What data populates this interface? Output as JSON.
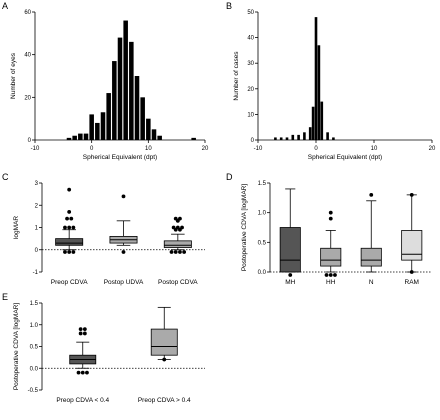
{
  "chart_data": [
    {
      "panel": "A",
      "type": "bar",
      "xlabel": "Spherical Equivalent (dpt)",
      "ylabel": "Number of eyes",
      "xlim": [
        -10,
        20
      ],
      "ylim": [
        0,
        60
      ],
      "xticks": [
        -10,
        0,
        10,
        20
      ],
      "yticks": [
        0,
        20,
        40,
        60
      ],
      "x": [
        -4,
        -3,
        -2,
        -1,
        0,
        1,
        2,
        3,
        4,
        5,
        6,
        7,
        8,
        9,
        10,
        11,
        12,
        18
      ],
      "values": [
        1,
        2,
        3,
        3,
        12,
        8,
        13,
        22,
        37,
        48,
        56,
        46,
        30,
        20,
        10,
        5,
        2,
        1
      ]
    },
    {
      "panel": "B",
      "type": "bar",
      "xlabel": "Spherical Equivalent (dpt)",
      "ylabel": "Number of cases",
      "xlim": [
        -10,
        20
      ],
      "ylim": [
        0,
        50
      ],
      "xticks": [
        -10,
        0,
        10,
        20
      ],
      "yticks": [
        0,
        10,
        20,
        30,
        40,
        50
      ],
      "x": [
        -7,
        -6,
        -5,
        -4,
        -3,
        -2,
        -1,
        -0.5,
        0,
        0.5,
        1,
        2,
        3
      ],
      "values": [
        1,
        1,
        1,
        2,
        2,
        3,
        5,
        13,
        48,
        37,
        15,
        3,
        1
      ]
    },
    {
      "panel": "C",
      "type": "box",
      "ylabel": "logMAR",
      "ylim": [
        -1,
        3
      ],
      "yticks": [
        -1,
        0,
        1,
        2,
        3
      ],
      "categories": [
        "Preop CDVA",
        "Postop UDVA",
        "Postop CDVA"
      ],
      "fills": [
        "#555555",
        "#aaaaaa",
        "#aaaaaa"
      ],
      "boxes": [
        {
          "whisker_low": 0,
          "q1": 0.2,
          "median": 0.3,
          "q3": 0.5,
          "whisker_high": 0.9,
          "outliers": [
            -0.1,
            -0.1,
            -0.1,
            1.0,
            1.0,
            1.0,
            1.4,
            1.4,
            1.7,
            2.7
          ]
        },
        {
          "whisker_low": 0.2,
          "q1": 0.3,
          "median": 0.45,
          "q3": 0.6,
          "whisker_high": 1.3,
          "outliers": [
            -0.1,
            2.4
          ]
        },
        {
          "whisker_low": 0,
          "q1": 0.1,
          "median": 0.2,
          "q3": 0.4,
          "whisker_high": 0.7,
          "outliers": [
            -0.1,
            -0.1,
            -0.1,
            -0.1,
            0.9,
            0.9,
            1.0,
            1.0,
            1.0,
            1.3,
            1.4,
            1.4
          ]
        }
      ]
    },
    {
      "panel": "D",
      "type": "box",
      "ylabel": "Postoperative CDVA [logMAR]",
      "ylim": [
        0,
        1.5
      ],
      "yticks": [
        0.0,
        0.5,
        1.0,
        1.5
      ],
      "categories": [
        "MH",
        "HH",
        "N",
        "RAM"
      ],
      "fills": [
        "#555555",
        "#aaaaaa",
        "#aaaaaa",
        "#dddddd"
      ],
      "boxes": [
        {
          "whisker_low": 0,
          "q1": 0,
          "median": 0.2,
          "q3": 0.75,
          "whisker_high": 1.4,
          "outliers": [
            -0.05
          ]
        },
        {
          "whisker_low": 0,
          "q1": 0.1,
          "median": 0.2,
          "q3": 0.4,
          "whisker_high": 0.7,
          "outliers": [
            -0.05,
            -0.05,
            -0.05,
            0.9,
            1.0
          ]
        },
        {
          "whisker_low": 0,
          "q1": 0.1,
          "median": 0.2,
          "q3": 0.4,
          "whisker_high": 1.2,
          "outliers": [
            1.3
          ]
        },
        {
          "whisker_low": 0,
          "q1": 0.2,
          "median": 0.3,
          "q3": 0.7,
          "whisker_high": 1.3,
          "outliers": [
            0.0,
            1.3
          ]
        }
      ]
    },
    {
      "panel": "E",
      "type": "box",
      "ylabel": "Postoperative CDVA [logMAR]",
      "ylim": [
        -0.5,
        1.5
      ],
      "yticks": [
        -0.5,
        0.0,
        0.5,
        1.0,
        1.5
      ],
      "categories": [
        "Preop CDVA < 0.4",
        "Preop CDVA > 0.4"
      ],
      "fills": [
        "#555555",
        "#aaaaaa"
      ],
      "boxes": [
        {
          "whisker_low": 0,
          "q1": 0.1,
          "median": 0.2,
          "q3": 0.3,
          "whisker_high": 0.6,
          "outliers": [
            -0.1,
            -0.1,
            -0.1,
            0.8,
            0.8,
            0.9,
            0.9
          ]
        },
        {
          "whisker_low": 0.2,
          "q1": 0.3,
          "median": 0.5,
          "q3": 0.9,
          "whisker_high": 1.4,
          "outliers": [
            0.2
          ]
        }
      ]
    }
  ]
}
